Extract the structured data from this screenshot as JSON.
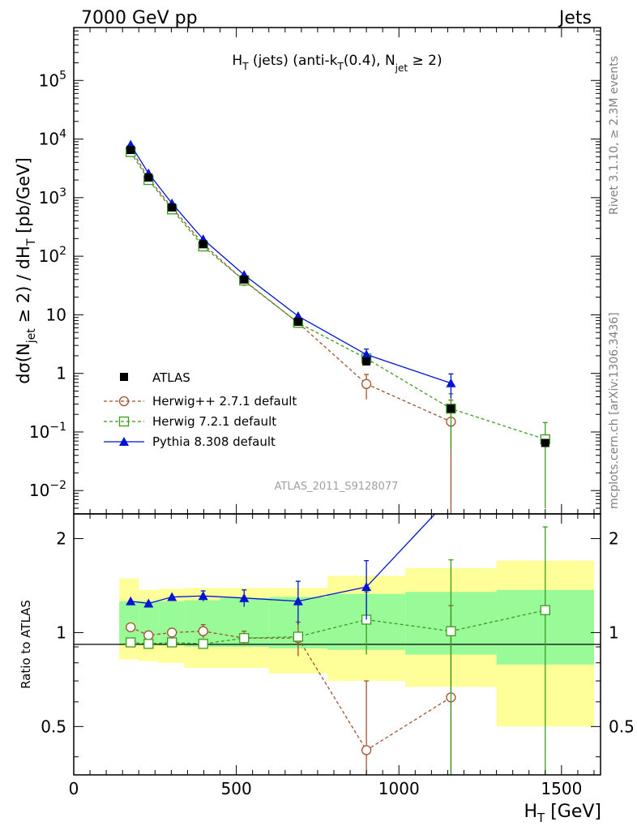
{
  "header": {
    "beam_label": "7000 GeV pp",
    "process_label": "Jets"
  },
  "side_labels": {
    "rivet": "Rivet 3.1.10, ≥ 2.3M events",
    "mcplots": "mcplots.cern.ch [arXiv:1306.3436]"
  },
  "colors": {
    "atlas": "#000000",
    "herwigpp": "#a0522d",
    "herwig7": "#3c9b1e",
    "pythia": "#0014d2",
    "band_inner": "#98fb98",
    "band_outer": "#ffff99"
  },
  "chart_data": [
    {
      "type": "line",
      "title_parts": {
        "a": "H",
        "a_sub": "T",
        "b": " (jets) (anti-k",
        "b_sub": "T",
        "c": "(0.4), N",
        "c_sub": "jet",
        "d": " ≥ 2)"
      },
      "ylabel_parts": {
        "a": "dσ(N",
        "a_sub": "jet",
        "b": " ≥ 2) / dH",
        "b_sub": "T",
        "c": " [pb/GeV]"
      },
      "watermark": "ATLAS_2011_S9128077",
      "yscale": "log",
      "ylim": [
        0.004,
        800000
      ],
      "xlim": [
        0,
        1620
      ],
      "ytick_labels": [
        {
          "base": "10",
          "exp": "−2",
          "value": 0.01
        },
        {
          "base": "10",
          "exp": "−1",
          "value": 0.1
        },
        {
          "base": "1",
          "exp": "",
          "value": 1
        },
        {
          "base": "10",
          "exp": "",
          "value": 10
        },
        {
          "base": "10",
          "exp": "2",
          "value": 100
        },
        {
          "base": "10",
          "exp": "3",
          "value": 1000
        },
        {
          "base": "10",
          "exp": "4",
          "value": 10000
        },
        {
          "base": "10",
          "exp": "5",
          "value": 100000
        }
      ],
      "series": [
        {
          "name": "ATLAS",
          "x": [
            175,
            230,
            302,
            398,
            524,
            690,
            900,
            1160,
            1450
          ],
          "y": [
            6500,
            2200,
            680,
            160,
            40,
            7.6,
            1.6,
            0.25,
            0.065
          ],
          "xerr": [
            25,
            30,
            40,
            50,
            75,
            90,
            125,
            140,
            150
          ]
        },
        {
          "name": "Herwig++ 2.7.1 default",
          "x": [
            175,
            230,
            302,
            398,
            524,
            690,
            900,
            1160
          ],
          "y": [
            6800,
            2150,
            680,
            162,
            38,
            7.3,
            0.66,
            0.15
          ],
          "yerr": [
            0,
            0,
            0,
            0,
            0,
            0,
            0.3,
            0.2
          ]
        },
        {
          "name": "Herwig 7.2.1 default",
          "x": [
            175,
            230,
            302,
            398,
            524,
            690,
            900,
            1160,
            1450
          ],
          "y": [
            6000,
            2000,
            630,
            147,
            38.5,
            7.3,
            1.8,
            0.25,
            0.075
          ],
          "yerr": [
            0,
            0,
            0,
            0,
            0,
            0,
            0,
            0.2,
            0.07
          ]
        },
        {
          "name": "Pythia 8.308 default",
          "x": [
            175,
            230,
            302,
            398,
            524,
            690,
            900,
            1160
          ],
          "y": [
            8000,
            2600,
            800,
            195,
            48,
            9.5,
            2.1,
            0.68
          ],
          "yerr": [
            0,
            0,
            0,
            0,
            0,
            0,
            0.5,
            0.3
          ]
        }
      ]
    },
    {
      "type": "line",
      "ylabel": "Ratio to ATLAS",
      "xlabel_parts": {
        "a": "H",
        "a_sub": "T",
        "b": " [GeV]"
      },
      "ylim": [
        0.35,
        2.4
      ],
      "xlim": [
        0,
        1620
      ],
      "ytick_labels": [
        "0.5",
        "1",
        "2"
      ],
      "ytick_values": [
        0.5,
        1,
        2
      ],
      "xtick_labels": [
        "0",
        "500",
        "1000",
        "1500"
      ],
      "xtick_values": [
        0,
        500,
        1000,
        1500
      ],
      "bins": [
        {
          "lo": 140,
          "hi": 200,
          "inner": [
            0.92,
            1.26
          ],
          "outer": [
            0.82,
            1.49
          ]
        },
        {
          "lo": 200,
          "hi": 260,
          "inner": [
            0.92,
            1.26
          ],
          "outer": [
            0.81,
            1.37
          ]
        },
        {
          "lo": 260,
          "hi": 340,
          "inner": [
            0.91,
            1.26
          ],
          "outer": [
            0.8,
            1.38
          ]
        },
        {
          "lo": 340,
          "hi": 450,
          "inner": [
            0.9,
            1.27
          ],
          "outer": [
            0.77,
            1.39
          ]
        },
        {
          "lo": 450,
          "hi": 600,
          "inner": [
            0.9,
            1.29
          ],
          "outer": [
            0.77,
            1.39
          ]
        },
        {
          "lo": 600,
          "hi": 780,
          "inner": [
            0.89,
            1.3
          ],
          "outer": [
            0.74,
            1.39
          ]
        },
        {
          "lo": 780,
          "hi": 1020,
          "inner": [
            0.88,
            1.33
          ],
          "outer": [
            0.7,
            1.52
          ]
        },
        {
          "lo": 1020,
          "hi": 1300,
          "inner": [
            0.85,
            1.35
          ],
          "outer": [
            0.67,
            1.61
          ]
        },
        {
          "lo": 1300,
          "hi": 1600,
          "inner": [
            0.79,
            1.37
          ],
          "outer": [
            0.5,
            1.7
          ]
        }
      ],
      "series": [
        {
          "name": "Herwig++ 2.7.1 default",
          "x": [
            175,
            230,
            302,
            398,
            524,
            690,
            900,
            1160
          ],
          "y": [
            1.04,
            0.98,
            1.0,
            1.01,
            0.96,
            0.96,
            0.42,
            0.62
          ],
          "yerr": [
            0,
            0,
            0,
            0.05,
            0.05,
            0.12,
            0.28,
            0.6
          ]
        },
        {
          "name": "Herwig 7.2.1 default",
          "x": [
            175,
            230,
            302,
            398,
            524,
            690,
            900,
            1160,
            1450
          ],
          "y": [
            0.93,
            0.92,
            0.93,
            0.92,
            0.96,
            0.97,
            1.1,
            1.01,
            1.18
          ],
          "yerr": [
            0,
            0,
            0,
            0,
            0,
            0,
            0.25,
            0.7,
            1.0
          ]
        },
        {
          "name": "Pythia 8.308 default",
          "x": [
            175,
            230,
            302,
            398,
            524,
            690,
            900,
            1160
          ],
          "y": [
            1.26,
            1.24,
            1.3,
            1.31,
            1.29,
            1.26,
            1.4,
            2.72
          ],
          "yerr": [
            0,
            0,
            0,
            0.05,
            0.08,
            0.2,
            0.3,
            0
          ]
        }
      ]
    }
  ]
}
